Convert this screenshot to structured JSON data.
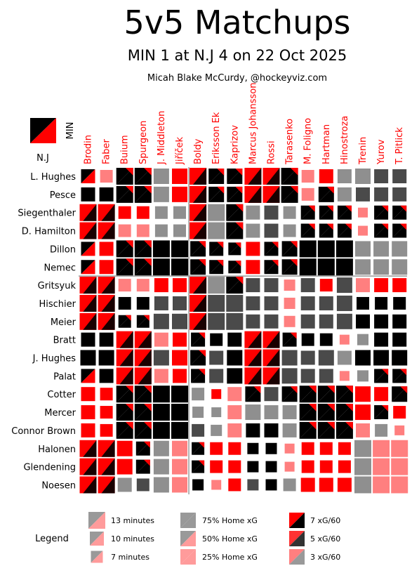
{
  "chart_data": {
    "type": "heatmap",
    "title": "5v5 Matchups",
    "subtitle": "MIN 1 at N.J 4 on 22 Oct 2025",
    "credit": "Micah Blake McCurdy, @hockeyviz.com",
    "away_team": "MIN",
    "home_team": "N.J",
    "columns": [
      "Brodin",
      "Faber",
      "Buium",
      "Spurgeon",
      "J. Middleton",
      "Jiříček",
      "Boldy",
      "Eriksson Ek",
      "Kaprizov",
      "Marcus Johansson",
      "Rossi",
      "Tarasenko",
      "M. Foligno",
      "Hartman",
      "Hinostroza",
      "Trenin",
      "Yurov",
      "T. Pitlick"
    ],
    "rows": [
      "L. Hughes",
      "Pesce",
      "Siegenthaler",
      "D. Hamilton",
      "Dillon",
      "Nemec",
      "Gritsyuk",
      "Hischier",
      "Meier",
      "Bratt",
      "J. Hughes",
      "Palat",
      "Cotter",
      "Mercer",
      "Connor Brown",
      "Halonen",
      "Glendening",
      "Noesen"
    ],
    "cell_encoding": "size = shared 5v5 minutes; color = home xG share; triangles = xG/60 rates",
    "legend": {
      "label": "Legend",
      "minutes": [
        "13 minutes",
        "10 minutes",
        "7 minutes"
      ],
      "home_xg": [
        "75% Home xG",
        "50% Home xG",
        "25% Home xG"
      ],
      "xg_rate": [
        "7 xG/60",
        "5 xG/60",
        "3 xG/60"
      ]
    },
    "cells": [
      [
        "K7R",
        "P6",
        "B9",
        "B9",
        "G8",
        "R8",
        "R9",
        "B8",
        "B8",
        "R9",
        "R9",
        "B9",
        "P6",
        "R7",
        "G7",
        "G8",
        "D7",
        "D7"
      ],
      [
        "K7",
        "K7",
        "B9",
        "B9",
        "G8",
        "R8",
        "R9",
        "B8",
        "B8",
        "R9",
        "R9",
        "B9",
        "P6",
        "B8",
        "G7",
        "D7",
        "D7",
        "D7"
      ],
      [
        "R10",
        "R10",
        "R6",
        "R6",
        "G6",
        "G6",
        "R9",
        "G9",
        "B9",
        "G7",
        "D7",
        "G6",
        "B7",
        "B7",
        "B7",
        "P4",
        "B7",
        "B7"
      ],
      [
        "R10",
        "R10",
        "P6",
        "P6",
        "G6",
        "G6",
        "R9",
        "G9",
        "B9",
        "G7",
        "D7",
        "G6",
        "B7",
        "B7",
        "B7",
        "P4",
        "B7",
        "B7"
      ],
      [
        "K7R",
        "R7",
        "B9",
        "B9",
        "K9",
        "K9",
        "B8",
        "B7",
        "B6",
        "R7",
        "B7",
        "B8",
        "K9",
        "K9",
        "K9",
        "G8",
        "G8",
        "G8"
      ],
      [
        "K7R",
        "R7",
        "B9",
        "B9",
        "K9",
        "K9",
        "B8",
        "B7",
        "B6",
        "R7",
        "B7",
        "B8",
        "K9",
        "K9",
        "K9",
        "G8",
        "G8",
        "G8"
      ],
      [
        "R10",
        "R10",
        "P6",
        "P6",
        "R7",
        "R7",
        "R9",
        "G10",
        "B9",
        "D7",
        "D7",
        "P5",
        "D7",
        "R6",
        "D8",
        "P7",
        "R7",
        "R7"
      ],
      [
        "R10",
        "R10",
        "K6",
        "K6",
        "D7",
        "D7",
        "R9",
        "D9",
        "D9",
        "D7",
        "D7",
        "P5",
        "D7",
        "D7",
        "D8",
        "K6",
        "K6",
        "K6"
      ],
      [
        "R10",
        "R10",
        "B6",
        "B6",
        "D8",
        "D8",
        "R9",
        "D9",
        "D9",
        "D7",
        "D7",
        "P5",
        "D7",
        "D7",
        "D8",
        "K7",
        "K7",
        "K7"
      ],
      [
        "K7",
        "K7",
        "R10",
        "R10",
        "P7",
        "R7",
        "B7",
        "K6",
        "K7",
        "R10",
        "R10",
        "B7",
        "K6",
        "K6",
        "P4",
        "G5",
        "K7",
        "K7"
      ],
      [
        "K8",
        "K8",
        "R10",
        "R10",
        "D8",
        "R8",
        "B8",
        "D7",
        "K8",
        "R10",
        "R10",
        "D8",
        "D7",
        "D8",
        "G7",
        "K8",
        "K8",
        "K8"
      ],
      [
        "K7R",
        "K7",
        "R9",
        "R9",
        "P7",
        "R7",
        "B7",
        "D7",
        "K8",
        "R9",
        "R9",
        "D8",
        "D7",
        "D7",
        "P4",
        "G5",
        "B7",
        "B7"
      ],
      [
        "R7",
        "R6",
        "B9",
        "B9",
        "K9",
        "K9",
        "G6",
        "R4",
        "P7",
        "B8",
        "D7",
        "B8",
        "B9",
        "B9",
        "B9",
        "R8",
        "R7",
        "B8"
      ],
      [
        "R7",
        "R6",
        "B9",
        "B9",
        "K9",
        "K9",
        "G5",
        "G4",
        "P7",
        "G8",
        "G7",
        "G7",
        "B9",
        "B9",
        "B9",
        "R8",
        "B7",
        "R6"
      ],
      [
        "R7",
        "R6",
        "B9",
        "B9",
        "K9",
        "K9",
        "D6",
        "G5",
        "P7",
        "K7",
        "K7",
        "G7",
        "B9",
        "B9",
        "B9",
        "P7",
        "G6",
        "P4"
      ],
      [
        "R10",
        "R10",
        "R8",
        "B7",
        "G8",
        "P8",
        "B6",
        "R6",
        "R6",
        "K5",
        "K5",
        "P4",
        "R6",
        "R6",
        "R6",
        "G9",
        "P9",
        "P9"
      ],
      [
        "R10",
        "R10",
        "R8",
        "B7",
        "G8",
        "P8",
        "B6",
        "R6",
        "R6",
        "K5",
        "K5",
        "P4",
        "R6",
        "R6",
        "R6",
        "G9",
        "P9",
        "P9"
      ],
      [
        "R10",
        "R10",
        "G7",
        "D6",
        "G8",
        "P8",
        "K5",
        "P4",
        "R6",
        "D5",
        "K5",
        "G6",
        "R7",
        "R7",
        "R7",
        "G9",
        "P9",
        "P9"
      ]
    ]
  }
}
